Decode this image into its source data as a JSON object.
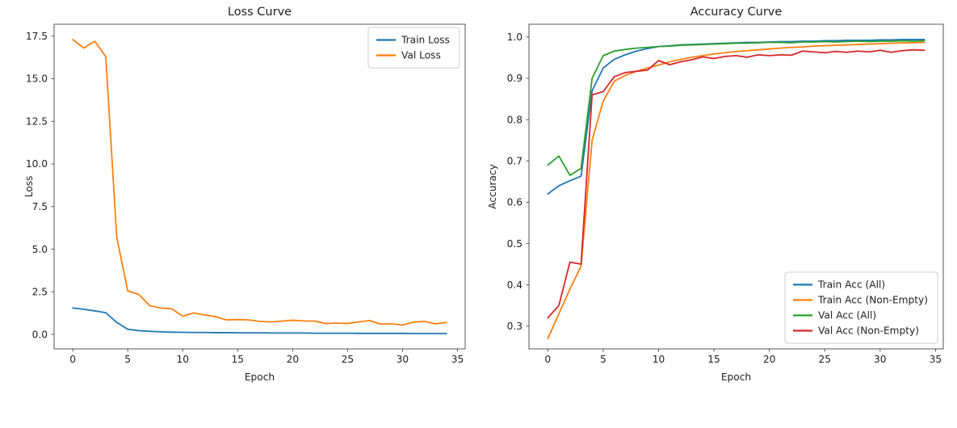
{
  "page": {
    "background": "#ffffff",
    "text_color": "#1f1f1f",
    "spine_color": "#555555"
  },
  "chart_data": [
    {
      "type": "line",
      "title": "Loss Curve",
      "xlabel": "Epoch",
      "ylabel": "Loss",
      "x": [
        0,
        1,
        2,
        3,
        4,
        5,
        6,
        7,
        8,
        9,
        10,
        11,
        12,
        13,
        14,
        15,
        16,
        17,
        18,
        19,
        20,
        21,
        22,
        23,
        24,
        25,
        26,
        27,
        28,
        29,
        30,
        31,
        32,
        33,
        34
      ],
      "xticks": [
        0,
        5,
        10,
        15,
        20,
        25,
        30,
        35
      ],
      "xtick_labels": [
        "0",
        "5",
        "10",
        "15",
        "20",
        "25",
        "30",
        "35"
      ],
      "yticks": [
        0.0,
        2.5,
        5.0,
        7.5,
        10.0,
        12.5,
        15.0,
        17.5
      ],
      "ytick_labels": [
        "0.0",
        "2.5",
        "5.0",
        "7.5",
        "10.0",
        "12.5",
        "15.0",
        "17.5"
      ],
      "xlim": [
        -1.7,
        35.7
      ],
      "ylim": [
        -0.85,
        18.2
      ],
      "grid": false,
      "legend_position": "upper-right",
      "series": [
        {
          "name": "Train Loss",
          "color": "#1f77b4",
          "values": [
            1.55,
            1.47,
            1.38,
            1.27,
            0.7,
            0.3,
            0.22,
            0.18,
            0.15,
            0.13,
            0.12,
            0.11,
            0.11,
            0.1,
            0.1,
            0.09,
            0.09,
            0.09,
            0.08,
            0.08,
            0.08,
            0.08,
            0.07,
            0.07,
            0.07,
            0.07,
            0.06,
            0.06,
            0.06,
            0.06,
            0.06,
            0.05,
            0.05,
            0.05,
            0.05
          ]
        },
        {
          "name": "Val Loss",
          "color": "#ff7f0e",
          "values": [
            17.3,
            16.8,
            17.2,
            16.3,
            5.7,
            2.55,
            2.35,
            1.68,
            1.55,
            1.5,
            1.07,
            1.26,
            1.14,
            1.04,
            0.85,
            0.87,
            0.85,
            0.76,
            0.73,
            0.78,
            0.83,
            0.79,
            0.78,
            0.64,
            0.66,
            0.64,
            0.73,
            0.81,
            0.6,
            0.62,
            0.55,
            0.72,
            0.76,
            0.62,
            0.7
          ]
        }
      ]
    },
    {
      "type": "line",
      "title": "Accuracy Curve",
      "xlabel": "Epoch",
      "ylabel": "Accuracy",
      "x": [
        0,
        1,
        2,
        3,
        4,
        5,
        6,
        7,
        8,
        9,
        10,
        11,
        12,
        13,
        14,
        15,
        16,
        17,
        18,
        19,
        20,
        21,
        22,
        23,
        24,
        25,
        26,
        27,
        28,
        29,
        30,
        31,
        32,
        33,
        34
      ],
      "xticks": [
        0,
        5,
        10,
        15,
        20,
        25,
        30,
        35
      ],
      "xtick_labels": [
        "0",
        "5",
        "10",
        "15",
        "20",
        "25",
        "30",
        "35"
      ],
      "yticks": [
        0.3,
        0.4,
        0.5,
        0.6,
        0.7,
        0.8,
        0.9,
        1.0
      ],
      "ytick_labels": [
        "0.3",
        "0.4",
        "0.5",
        "0.6",
        "0.7",
        "0.8",
        "0.9",
        "1.0"
      ],
      "xlim": [
        -1.7,
        35.7
      ],
      "ylim": [
        0.245,
        1.031
      ],
      "grid": false,
      "legend_position": "lower-right",
      "series": [
        {
          "name": "Train Acc (All)",
          "color": "#1f77b4",
          "values": [
            0.62,
            0.64,
            0.652,
            0.663,
            0.87,
            0.925,
            0.946,
            0.957,
            0.966,
            0.972,
            0.977,
            0.979,
            0.981,
            0.982,
            0.983,
            0.984,
            0.985,
            0.986,
            0.987,
            0.987,
            0.988,
            0.989,
            0.989,
            0.99,
            0.99,
            0.991,
            0.991,
            0.992,
            0.992,
            0.992,
            0.993,
            0.993,
            0.994,
            0.994,
            0.994
          ]
        },
        {
          "name": "Train Acc (Non-Empty)",
          "color": "#ff7f0e",
          "values": [
            0.27,
            0.33,
            0.39,
            0.445,
            0.75,
            0.845,
            0.893,
            0.907,
            0.917,
            0.925,
            0.932,
            0.94,
            0.946,
            0.951,
            0.955,
            0.959,
            0.962,
            0.965,
            0.967,
            0.969,
            0.971,
            0.973,
            0.975,
            0.976,
            0.978,
            0.979,
            0.98,
            0.981,
            0.982,
            0.983,
            0.984,
            0.985,
            0.986,
            0.986,
            0.987
          ]
        },
        {
          "name": "Val Acc (All)",
          "color": "#2ca02c",
          "values": [
            0.69,
            0.712,
            0.665,
            0.682,
            0.9,
            0.955,
            0.966,
            0.97,
            0.973,
            0.975,
            0.977,
            0.978,
            0.98,
            0.981,
            0.982,
            0.983,
            0.984,
            0.985,
            0.985,
            0.986,
            0.987,
            0.987,
            0.986,
            0.988,
            0.988,
            0.989,
            0.988,
            0.989,
            0.99,
            0.989,
            0.99,
            0.99,
            0.991,
            0.99,
            0.991
          ]
        },
        {
          "name": "Val Acc (Non-Empty)",
          "color": "#d62728",
          "values": [
            0.32,
            0.35,
            0.455,
            0.45,
            0.86,
            0.868,
            0.904,
            0.914,
            0.917,
            0.92,
            0.943,
            0.933,
            0.94,
            0.945,
            0.952,
            0.948,
            0.953,
            0.955,
            0.951,
            0.957,
            0.955,
            0.957,
            0.956,
            0.966,
            0.964,
            0.962,
            0.965,
            0.963,
            0.966,
            0.964,
            0.968,
            0.963,
            0.967,
            0.969,
            0.968
          ]
        }
      ]
    }
  ]
}
